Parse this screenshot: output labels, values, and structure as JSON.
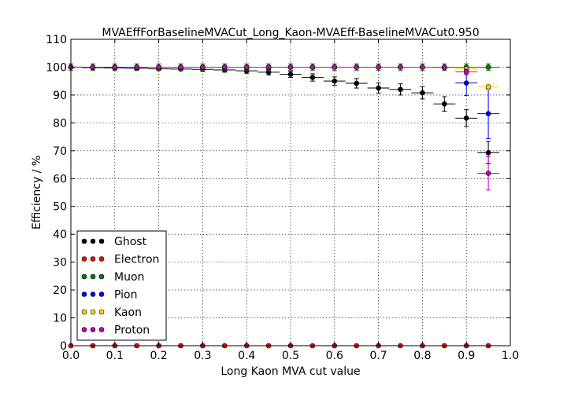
{
  "chart_data": {
    "type": "scatter",
    "title": "MVAEffForBaselineMVACut_Long_Kaon-MVAEff-BaselineMVACut0.950",
    "xlabel": "Long Kaon MVA cut value",
    "ylabel": "Efficiency / %",
    "xlim": [
      0.0,
      1.0
    ],
    "ylim": [
      0,
      110
    ],
    "xticks": [
      "0.0",
      "0.1",
      "0.2",
      "0.3",
      "0.4",
      "0.5",
      "0.6",
      "0.7",
      "0.8",
      "0.9",
      "1.0"
    ],
    "yticks": [
      "0",
      "10",
      "20",
      "30",
      "40",
      "50",
      "60",
      "70",
      "80",
      "90",
      "100",
      "110"
    ],
    "grid": true,
    "legend_position": "lower-left",
    "series": [
      {
        "name": "Ghost",
        "color": "#000000",
        "x": [
          0.0,
          0.05,
          0.1,
          0.15,
          0.2,
          0.25,
          0.3,
          0.35,
          0.4,
          0.45,
          0.5,
          0.55,
          0.6,
          0.65,
          0.7,
          0.75,
          0.8,
          0.85,
          0.9,
          0.95
        ],
        "y": [
          100,
          99.8,
          99.7,
          99.6,
          99.4,
          99.3,
          99.2,
          99.0,
          98.7,
          98.2,
          97.4,
          96.3,
          95.0,
          94.2,
          92.5,
          92.0,
          90.8,
          86.8,
          81.7,
          69.3
        ],
        "yerr": [
          0.2,
          0.3,
          0.3,
          0.4,
          0.5,
          0.6,
          0.7,
          0.8,
          0.9,
          1.0,
          1.1,
          1.3,
          1.5,
          1.7,
          1.8,
          2.0,
          2.2,
          2.6,
          3.0,
          4.0
        ]
      },
      {
        "name": "Electron",
        "color": "#ff0000",
        "x": [
          0.0,
          0.05,
          0.1,
          0.15,
          0.2,
          0.25,
          0.3,
          0.35,
          0.4,
          0.45,
          0.5,
          0.55,
          0.6,
          0.65,
          0.7,
          0.75,
          0.8,
          0.85,
          0.9,
          0.95
        ],
        "y": [
          0,
          0,
          0,
          0,
          0,
          0,
          0,
          0,
          0,
          0,
          0,
          0,
          0,
          0,
          0,
          0,
          0,
          0,
          0,
          0
        ]
      },
      {
        "name": "Muon",
        "color": "#008000",
        "x": [
          0.0,
          0.05,
          0.1,
          0.15,
          0.2,
          0.25,
          0.3,
          0.35,
          0.4,
          0.45,
          0.5,
          0.55,
          0.6,
          0.65,
          0.7,
          0.75,
          0.8,
          0.85,
          0.9,
          0.95
        ],
        "y": [
          100,
          100,
          100,
          100,
          100,
          100,
          100,
          100,
          100,
          100,
          100,
          100,
          100,
          100,
          100,
          100,
          100,
          100,
          100,
          100
        ],
        "yerr": [
          1.2,
          1.2,
          1.2,
          1.2,
          1.2,
          1.2,
          1.2,
          1.2,
          1.2,
          1.2,
          1.2,
          1.2,
          1.2,
          1.2,
          1.2,
          1.2,
          1.2,
          1.2,
          1.2,
          1.2
        ]
      },
      {
        "name": "Pion",
        "color": "#0000ff",
        "x": [
          0.0,
          0.05,
          0.1,
          0.15,
          0.2,
          0.25,
          0.3,
          0.35,
          0.4,
          0.45,
          0.5,
          0.55,
          0.6,
          0.65,
          0.7,
          0.75,
          0.8,
          0.85,
          0.9,
          0.95
        ],
        "y": [
          100,
          100,
          100,
          100,
          100,
          100,
          100,
          100,
          100,
          100,
          100,
          100,
          100,
          100,
          100,
          100,
          100,
          100,
          94.3,
          83.3
        ],
        "yerr": [
          0,
          0,
          0,
          0,
          0,
          0,
          0,
          0,
          0,
          0,
          0,
          0,
          0,
          0,
          0,
          0,
          0,
          0,
          4.5,
          9.0
        ]
      },
      {
        "name": "Kaon",
        "color": "#ffd700",
        "x": [
          0.0,
          0.05,
          0.1,
          0.15,
          0.2,
          0.25,
          0.3,
          0.35,
          0.4,
          0.45,
          0.5,
          0.55,
          0.6,
          0.65,
          0.7,
          0.75,
          0.8,
          0.85,
          0.9,
          0.95
        ],
        "y": [
          100,
          100,
          100,
          100,
          100,
          100,
          100,
          100,
          100,
          100,
          100,
          100,
          100,
          100,
          100,
          100,
          100,
          99.8,
          99.4,
          92.9
        ],
        "yerr": [
          0,
          0,
          0,
          0,
          0,
          0,
          0,
          0,
          0,
          0,
          0,
          0,
          0,
          0,
          0,
          0,
          0,
          0.3,
          0.5,
          1.0
        ]
      },
      {
        "name": "Proton",
        "color": "#bf00bf",
        "x": [
          0.0,
          0.05,
          0.1,
          0.15,
          0.2,
          0.25,
          0.3,
          0.35,
          0.4,
          0.45,
          0.5,
          0.55,
          0.6,
          0.65,
          0.7,
          0.75,
          0.8,
          0.85,
          0.9,
          0.95
        ],
        "y": [
          100,
          100,
          100,
          100,
          100,
          100,
          100,
          100,
          100,
          100,
          100,
          100,
          100,
          100,
          100,
          100,
          100,
          100,
          98.3,
          61.9
        ],
        "yerr": [
          0,
          0,
          0,
          0,
          0,
          0,
          0,
          0,
          0,
          0,
          0,
          0,
          0,
          0,
          0,
          0,
          0,
          0,
          1.0,
          6.0
        ]
      }
    ]
  }
}
